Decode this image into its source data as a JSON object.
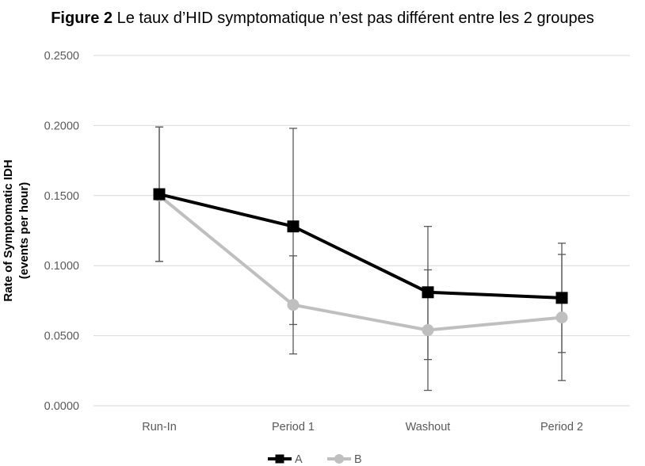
{
  "figure": {
    "label": "Figure 2",
    "caption": " Le taux d’HID symptomatique n’est pas différent entre les 2 groupes"
  },
  "chart_data": {
    "type": "line",
    "categories": [
      "Run-In",
      "Period 1",
      "Washout",
      "Period 2"
    ],
    "ylabel_line1": "Rate of Symptomatic IDH",
    "ylabel_line2": "(events per hour)",
    "ylim": [
      0,
      0.25
    ],
    "yticks": [
      "0.0000",
      "0.0500",
      "0.1000",
      "0.1500",
      "0.2000",
      "0.2500"
    ],
    "grid": true,
    "legend_position": "bottom",
    "series": [
      {
        "name": "A",
        "color": "#000000",
        "marker": "square",
        "values": [
          0.151,
          0.128,
          0.081,
          0.077
        ],
        "error_low": [
          0.103,
          0.058,
          0.033,
          0.038
        ],
        "error_high": [
          0.199,
          0.198,
          0.128,
          0.116
        ]
      },
      {
        "name": "B",
        "color": "#bfbfbf",
        "marker": "circle",
        "values": [
          0.15,
          0.072,
          0.054,
          0.063
        ],
        "error_low": [
          0.103,
          0.037,
          0.011,
          0.018
        ],
        "error_high": [
          0.199,
          0.107,
          0.097,
          0.108
        ]
      }
    ]
  }
}
